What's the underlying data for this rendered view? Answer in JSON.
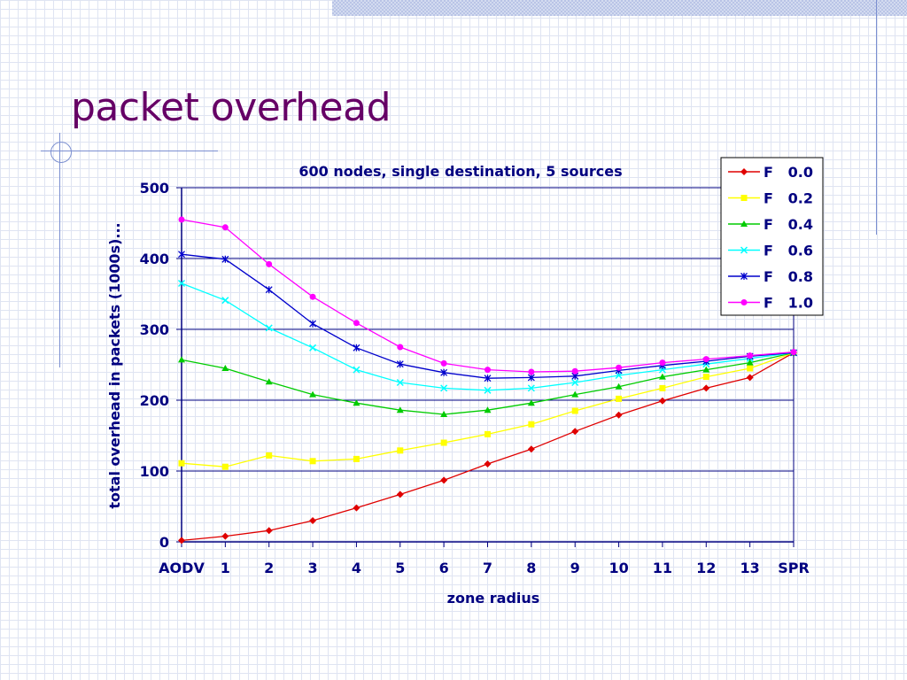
{
  "slide": {
    "title": "packet overhead"
  },
  "chart_data": {
    "type": "line",
    "title": "600 nodes, single destination, 5 sources",
    "xlabel": "zone radius",
    "ylabel": "total overhead in packets (1000s)...",
    "categories": [
      "AODV",
      "1",
      "2",
      "3",
      "4",
      "5",
      "6",
      "7",
      "8",
      "9",
      "10",
      "11",
      "12",
      "13",
      "SPR"
    ],
    "ylim": [
      0,
      500
    ],
    "yticks": [
      0,
      100,
      200,
      300,
      400,
      500
    ],
    "grid": "horizontal",
    "legend": "top-right",
    "series": [
      {
        "name": "F   0.0",
        "color": "#e00000",
        "marker": "diamond",
        "values": [
          2,
          8,
          16,
          30,
          48,
          67,
          87,
          110,
          131,
          156,
          179,
          199,
          217,
          232,
          267
        ]
      },
      {
        "name": "F   0.2",
        "color": "#ffff00",
        "marker": "square",
        "values": [
          111,
          106,
          122,
          114,
          117,
          129,
          140,
          152,
          166,
          185,
          202,
          217,
          233,
          245,
          267
        ]
      },
      {
        "name": "F   0.4",
        "color": "#00cc00",
        "marker": "triangle",
        "values": [
          257,
          245,
          226,
          208,
          196,
          186,
          180,
          186,
          196,
          208,
          219,
          233,
          243,
          253,
          267
        ]
      },
      {
        "name": "F   0.6",
        "color": "#00ffff",
        "marker": "x",
        "values": [
          365,
          341,
          302,
          274,
          243,
          225,
          217,
          214,
          217,
          225,
          235,
          243,
          251,
          259,
          267
        ]
      },
      {
        "name": "F   0.8",
        "color": "#0000cc",
        "marker": "star",
        "values": [
          406,
          399,
          356,
          308,
          274,
          251,
          239,
          231,
          232,
          234,
          242,
          249,
          255,
          262,
          267
        ]
      },
      {
        "name": "F   1.0",
        "color": "#ff00ff",
        "marker": "circle",
        "values": [
          455,
          444,
          392,
          346,
          309,
          275,
          252,
          243,
          240,
          241,
          246,
          253,
          258,
          263,
          268
        ]
      }
    ]
  }
}
